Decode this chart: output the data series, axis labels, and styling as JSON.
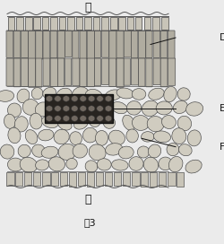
{
  "title": "図3",
  "label_top": "表",
  "label_bottom": "裏",
  "label_D": "D",
  "label_E": "E",
  "label_F": "F",
  "bg_color": "#ebebeb",
  "cell_color_epidermis": "#c8c4b8",
  "cell_color_palisade": "#b8b4a8",
  "cell_color_spongy": "#d0ccc0",
  "cell_edge_color": "#444444",
  "vb_color": "#282420",
  "vb_cell_color": "#706860",
  "fig_width": 2.5,
  "fig_height": 2.72,
  "dpi": 100
}
